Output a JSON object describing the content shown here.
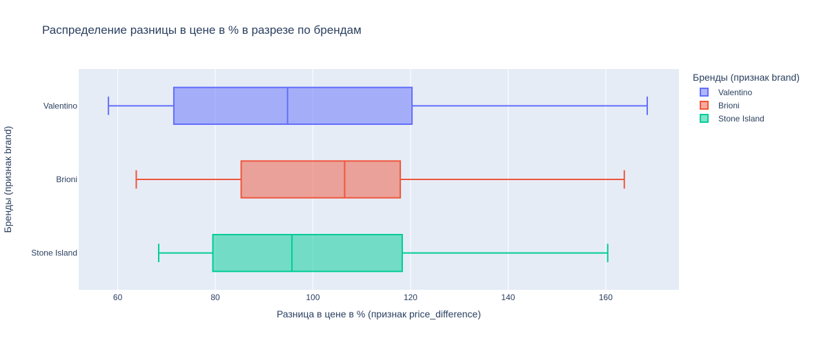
{
  "chart_data": {
    "type": "box",
    "orientation": "horizontal",
    "title": "Распределение разницы в цене в % в разрезе по брендам",
    "xlabel": "Разница в цене в % (признак price_difference)",
    "ylabel": "Бренды (признак brand)",
    "xlim": [
      52,
      175
    ],
    "x_ticks": [
      60,
      80,
      100,
      120,
      140,
      160
    ],
    "grid": true,
    "legend": {
      "title": "Бренды (признак brand)",
      "placement": "right"
    },
    "categories": [
      "Valentino",
      "Brioni",
      "Stone Island"
    ],
    "series": [
      {
        "name": "Valentino",
        "color": "#636efa",
        "min": 58.1,
        "q1": 71.5,
        "median": 94.8,
        "q3": 120.3,
        "max": 168.5
      },
      {
        "name": "Brioni",
        "color": "#ef553b",
        "min": 63.8,
        "q1": 85.3,
        "median": 106.5,
        "q3": 117.9,
        "max": 163.8
      },
      {
        "name": "Stone Island",
        "color": "#00cc96",
        "min": 68.4,
        "q1": 79.5,
        "median": 95.7,
        "q3": 118.3,
        "max": 160.4
      }
    ]
  }
}
